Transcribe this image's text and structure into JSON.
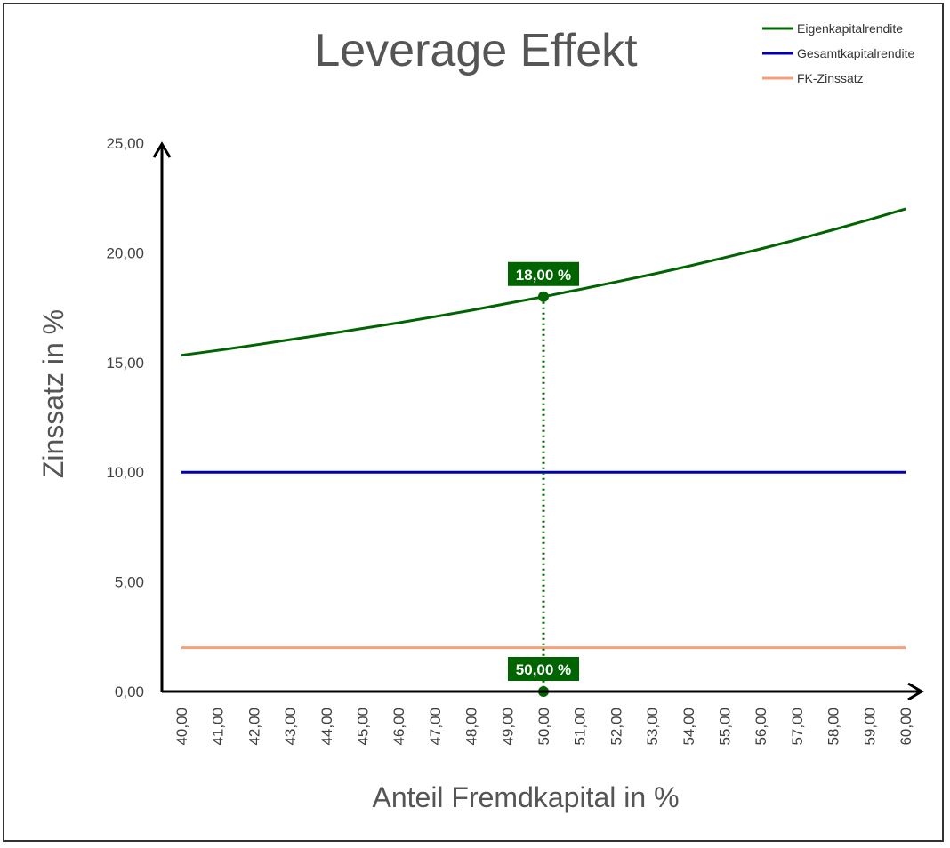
{
  "chart_data": {
    "type": "line",
    "title": "Leverage Effekt",
    "xlabel": "Anteil Fremdkapital in %",
    "ylabel": "Zinssatz in %",
    "x": [
      40,
      41,
      42,
      43,
      44,
      45,
      46,
      47,
      48,
      49,
      50,
      51,
      52,
      53,
      54,
      55,
      56,
      57,
      58,
      59,
      60
    ],
    "x_tick_labels": [
      "40,00",
      "41,00",
      "42,00",
      "43,00",
      "44,00",
      "45,00",
      "46,00",
      "47,00",
      "48,00",
      "49,00",
      "50,00",
      "51,00",
      "52,00",
      "53,00",
      "54,00",
      "55,00",
      "56,00",
      "57,00",
      "58,00",
      "59,00",
      "60,00"
    ],
    "y_ticks": [
      0,
      5,
      10,
      15,
      20,
      25
    ],
    "y_tick_labels": [
      "0,00",
      "5,00",
      "10,00",
      "15,00",
      "20,00",
      "25,00"
    ],
    "xlim": [
      40,
      60
    ],
    "ylim": [
      0,
      25
    ],
    "grid": false,
    "legend_position": "top-right",
    "series": [
      {
        "name": "Eigenkapitalrendite",
        "color": "#006400",
        "values": [
          15.33,
          15.55,
          15.79,
          16.04,
          16.29,
          16.55,
          16.81,
          17.09,
          17.38,
          17.69,
          18.0,
          18.33,
          18.67,
          19.02,
          19.39,
          19.78,
          20.18,
          20.6,
          21.05,
          21.51,
          22.0
        ]
      },
      {
        "name": "Gesamtkapitalrendite",
        "color": "#0000b0",
        "values": [
          10,
          10,
          10,
          10,
          10,
          10,
          10,
          10,
          10,
          10,
          10,
          10,
          10,
          10,
          10,
          10,
          10,
          10,
          10,
          10,
          10
        ]
      },
      {
        "name": "FK-Zinssatz",
        "color": "#f4a07a",
        "values": [
          2,
          2,
          2,
          2,
          2,
          2,
          2,
          2,
          2,
          2,
          2,
          2,
          2,
          2,
          2,
          2,
          2,
          2,
          2,
          2,
          2
        ]
      }
    ],
    "marker": {
      "x": 50,
      "y": 18,
      "y_label": "18,00 %",
      "x_label": "50,00 %",
      "color": "#006400"
    }
  }
}
